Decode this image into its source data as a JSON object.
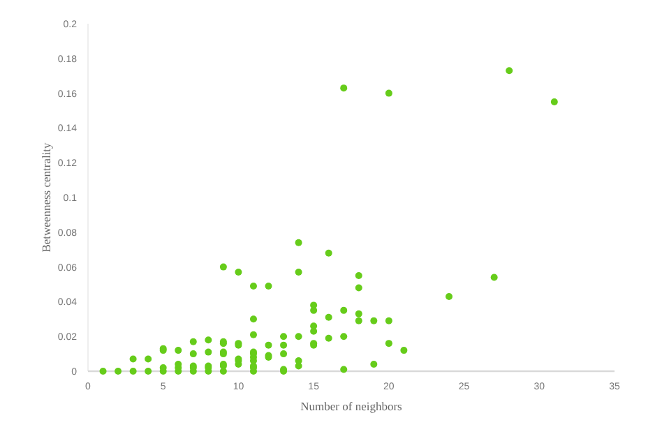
{
  "chart_data": {
    "type": "scatter",
    "xlabel": "Number of neighbors",
    "ylabel": "Betweenness centrality",
    "xlim": [
      0,
      35
    ],
    "xticks": [
      0,
      5,
      10,
      15,
      20,
      25,
      30,
      35
    ],
    "ylim": [
      0,
      0.2
    ],
    "yticks": [
      0,
      0.02,
      0.04,
      0.06,
      0.08,
      0.1,
      0.12,
      0.14,
      0.16,
      0.18,
      0.2
    ],
    "grid": false,
    "marker": "circle",
    "series": [
      {
        "color": "#66cc1a",
        "x": [
          1,
          2,
          3,
          3,
          4,
          4,
          5,
          5,
          5,
          5,
          6,
          6,
          6,
          6,
          7,
          7,
          7,
          7,
          7,
          8,
          8,
          8,
          8,
          8,
          9,
          9,
          9,
          9,
          9,
          9,
          9,
          9,
          10,
          10,
          10,
          10,
          10,
          10,
          11,
          11,
          11,
          11,
          11,
          11,
          11,
          11,
          11,
          11,
          12,
          12,
          12,
          12,
          13,
          13,
          13,
          13,
          13,
          14,
          14,
          14,
          14,
          14,
          15,
          15,
          15,
          15,
          15,
          15,
          16,
          16,
          16,
          17,
          17,
          17,
          17,
          18,
          18,
          18,
          18,
          19,
          19,
          20,
          20,
          20,
          21,
          24,
          27,
          28,
          31
        ],
        "values": [
          0,
          0,
          0,
          0.007,
          0,
          0.007,
          0,
          0.002,
          0.012,
          0.013,
          0,
          0.002,
          0.004,
          0.012,
          0,
          0.002,
          0.003,
          0.01,
          0.017,
          0,
          0.002,
          0.003,
          0.011,
          0.018,
          0,
          0.003,
          0.004,
          0.01,
          0.011,
          0.016,
          0.017,
          0.06,
          0.004,
          0.006,
          0.007,
          0.015,
          0.016,
          0.057,
          0,
          0.002,
          0.003,
          0.006,
          0.008,
          0.01,
          0.011,
          0.021,
          0.03,
          0.049,
          0.008,
          0.009,
          0.015,
          0.049,
          0,
          0.001,
          0.01,
          0.015,
          0.02,
          0.003,
          0.006,
          0.02,
          0.057,
          0.074,
          0.015,
          0.016,
          0.023,
          0.026,
          0.035,
          0.038,
          0.019,
          0.031,
          0.068,
          0.001,
          0.02,
          0.035,
          0.163,
          0.029,
          0.033,
          0.048,
          0.055,
          0.004,
          0.029,
          0.016,
          0.029,
          0.16,
          0.012,
          0.043,
          0.054,
          0.173,
          0.155
        ]
      }
    ]
  }
}
